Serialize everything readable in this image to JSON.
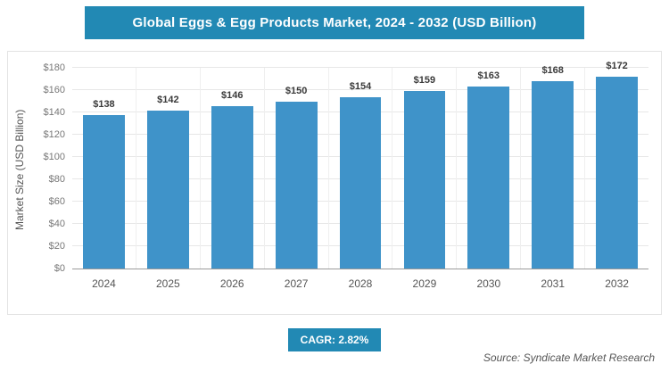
{
  "header": {
    "title": "Global Eggs & Egg Products Market, 2024 - 2032 (USD Billion)"
  },
  "chart_data": {
    "type": "bar",
    "title": "Global Eggs & Egg Products Market, 2024 - 2032 (USD Billion)",
    "categories": [
      "2024",
      "2025",
      "2026",
      "2027",
      "2028",
      "2029",
      "2030",
      "2031",
      "2032"
    ],
    "values": [
      138,
      142,
      146,
      150,
      154,
      159,
      163,
      168,
      172
    ],
    "value_labels": [
      "$138",
      "$142",
      "$146",
      "$150",
      "$154",
      "$159",
      "$163",
      "$168",
      "$172"
    ],
    "xlabel": "",
    "ylabel": "Market Size (USD Billion)",
    "ylim": [
      0,
      180
    ],
    "ytick_step": 20,
    "ytick_labels": [
      "$0",
      "$20",
      "$40",
      "$60",
      "$80",
      "$100",
      "$120",
      "$140",
      "$160",
      "$180"
    ],
    "grid": true,
    "legend": "none"
  },
  "footer": {
    "cagr_label": "CAGR: 2.82%",
    "source": "Source: Syndicate Market Research"
  },
  "colors": {
    "header_bg": "#2289b4",
    "badge_bg": "#2289b4",
    "bar": "#3f93c9"
  }
}
